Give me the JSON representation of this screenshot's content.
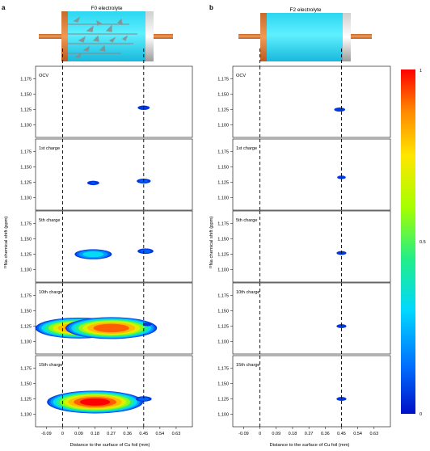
{
  "panels": [
    {
      "letter": "a",
      "title": "F0 electrolyte"
    },
    {
      "letter": "b",
      "title": "F2 electrolyte"
    }
  ],
  "chart_data": {
    "type": "heatmap",
    "xlabel": "Distance to the surface of Cu foil (mm)",
    "ylabel": "²³Na chemical shift (ppm)",
    "x_ticks": [
      "-0.09",
      "0",
      "0.09",
      "0.18",
      "0.27",
      "0.36",
      "0.45",
      "0.54",
      "0.63"
    ],
    "y_ticks": [
      "1,175",
      "1,150",
      "1,125",
      "1,100"
    ],
    "xlim": [
      -0.15,
      0.72
    ],
    "ylim": [
      1080,
      1195
    ],
    "dashed_lines_x": [
      0,
      0.45
    ],
    "rows": [
      "OCV",
      "1st charge",
      "5th charge",
      "10th charge",
      "15th charge"
    ],
    "colorbar": {
      "min_label": "0",
      "mid_label": "0.5",
      "max_label": "1",
      "colors": [
        "#0010c8",
        "#0070ff",
        "#00d8ff",
        "#22ee88",
        "#a6ff00",
        "#ffe600",
        "#ff8800",
        "#ff0000"
      ]
    },
    "intensity_levels_color_scale": "0 (blue) to 1 (red)",
    "series": [
      {
        "panel": "F0 electrolyte",
        "row": "OCV",
        "blobs": [
          {
            "x": 0.45,
            "y": 1128,
            "peak": 0.08
          }
        ]
      },
      {
        "panel": "F0 electrolyte",
        "row": "1st charge",
        "blobs": [
          {
            "x": 0.17,
            "y": 1124,
            "peak": 0.08
          },
          {
            "x": 0.45,
            "y": 1127,
            "peak": 0.1
          }
        ]
      },
      {
        "panel": "F0 electrolyte",
        "row": "5th charge",
        "blobs": [
          {
            "x": 0.17,
            "y": 1125,
            "peak": 0.35
          },
          {
            "x": 0.46,
            "y": 1130,
            "peak": 0.12
          }
        ]
      },
      {
        "panel": "F0 electrolyte",
        "row": "10th charge",
        "blobs": [
          {
            "x": 0.09,
            "y": 1122,
            "peak": 0.9
          },
          {
            "x": 0.27,
            "y": 1122,
            "peak": 0.95
          },
          {
            "x": 0.47,
            "y": 1128,
            "peak": 0.05
          }
        ]
      },
      {
        "panel": "F0 electrolyte",
        "row": "15th charge",
        "blobs": [
          {
            "x": 0.18,
            "y": 1120,
            "peak": 1.0
          },
          {
            "x": 0.45,
            "y": 1125,
            "peak": 0.12
          }
        ]
      },
      {
        "panel": "F2 electrolyte",
        "row": "OCV",
        "blobs": [
          {
            "x": 0.44,
            "y": 1125,
            "peak": 0.07
          }
        ]
      },
      {
        "panel": "F2 electrolyte",
        "row": "1st charge",
        "blobs": [
          {
            "x": 0.45,
            "y": 1133,
            "peak": 0.05
          }
        ]
      },
      {
        "panel": "F2 electrolyte",
        "row": "5th charge",
        "blobs": [
          {
            "x": 0.45,
            "y": 1127,
            "peak": 0.06
          }
        ]
      },
      {
        "panel": "F2 electrolyte",
        "row": "10th charge",
        "blobs": [
          {
            "x": 0.45,
            "y": 1125,
            "peak": 0.06
          }
        ]
      },
      {
        "panel": "F2 electrolyte",
        "row": "15th charge",
        "blobs": [
          {
            "x": 0.45,
            "y": 1125,
            "peak": 0.06
          }
        ]
      }
    ]
  }
}
